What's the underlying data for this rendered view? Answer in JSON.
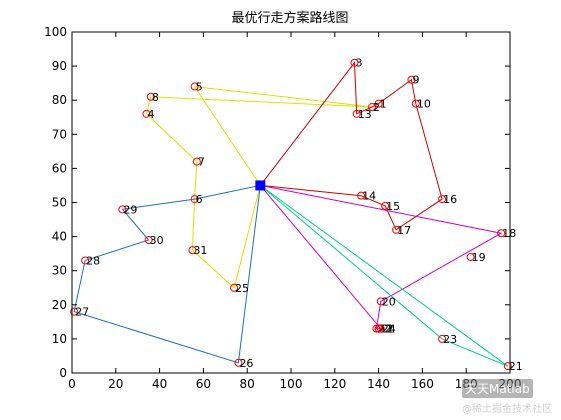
{
  "chart_data": {
    "type": "line",
    "title": "最优行走方案路线图",
    "xlabel": "",
    "ylabel": "",
    "xlim": [
      0,
      200
    ],
    "ylim": [
      0,
      100
    ],
    "xticks": [
      0,
      20,
      40,
      60,
      80,
      100,
      120,
      140,
      160,
      180,
      200
    ],
    "yticks": [
      0,
      10,
      20,
      30,
      40,
      50,
      60,
      70,
      80,
      90,
      100
    ],
    "grid": false,
    "depot": {
      "x": 86,
      "y": 55,
      "color": "#0000ff"
    },
    "points": [
      {
        "label": "1",
        "x": 140,
        "y": 79
      },
      {
        "label": "2",
        "x": 137,
        "y": 78
      },
      {
        "label": "3",
        "x": 129,
        "y": 91
      },
      {
        "label": "4",
        "x": 34,
        "y": 76
      },
      {
        "label": "5",
        "x": 56,
        "y": 84
      },
      {
        "label": "6",
        "x": 56,
        "y": 51
      },
      {
        "label": "7",
        "x": 57,
        "y": 62
      },
      {
        "label": "8",
        "x": 36,
        "y": 81
      },
      {
        "label": "9",
        "x": 155,
        "y": 86
      },
      {
        "label": "10",
        "x": 157,
        "y": 79
      },
      {
        "label": "11",
        "x": 140,
        "y": 13
      },
      {
        "label": "12",
        "x": 140,
        "y": 13
      },
      {
        "label": "13",
        "x": 130,
        "y": 76
      },
      {
        "label": "14",
        "x": 132,
        "y": 52
      },
      {
        "label": "15",
        "x": 143,
        "y": 49
      },
      {
        "label": "16",
        "x": 169,
        "y": 51
      },
      {
        "label": "17",
        "x": 148,
        "y": 42
      },
      {
        "label": "18",
        "x": 196,
        "y": 41
      },
      {
        "label": "19",
        "x": 182,
        "y": 34
      },
      {
        "label": "20",
        "x": 141,
        "y": 21
      },
      {
        "label": "21",
        "x": 199,
        "y": 2
      },
      {
        "label": "22",
        "x": 139,
        "y": 13
      },
      {
        "label": "23",
        "x": 169,
        "y": 10
      },
      {
        "label": "24",
        "x": 141,
        "y": 13
      },
      {
        "label": "25",
        "x": 74,
        "y": 25
      },
      {
        "label": "26",
        "x": 76,
        "y": 3
      },
      {
        "label": "27",
        "x": 1,
        "y": 18
      },
      {
        "label": "28",
        "x": 6,
        "y": 33
      },
      {
        "label": "29",
        "x": 23,
        "y": 48
      },
      {
        "label": "30",
        "x": 35,
        "y": 39
      },
      {
        "label": "31",
        "x": 55,
        "y": 36
      }
    ],
    "routes": [
      {
        "color": "#e0e000",
        "stops": [
          "25",
          "31",
          "6",
          "7",
          "4",
          "8",
          "2",
          "5"
        ]
      },
      {
        "color": "#d00000",
        "stops": [
          "3",
          "13",
          "2",
          "1",
          "9",
          "10",
          "16",
          "17",
          "15",
          "14"
        ]
      },
      {
        "color": "#1f6fbf",
        "stops": [
          "6",
          "29",
          "30",
          "28",
          "27",
          "26"
        ]
      },
      {
        "color": "#cc00cc",
        "stops": [
          "24",
          "22",
          "20",
          "18"
        ]
      },
      {
        "color": "#00d08a",
        "stops": [
          "23",
          "21"
        ]
      }
    ]
  },
  "watermark": {
    "main": "天天Matlab",
    "sub": "@稀土掘金技术社区"
  }
}
